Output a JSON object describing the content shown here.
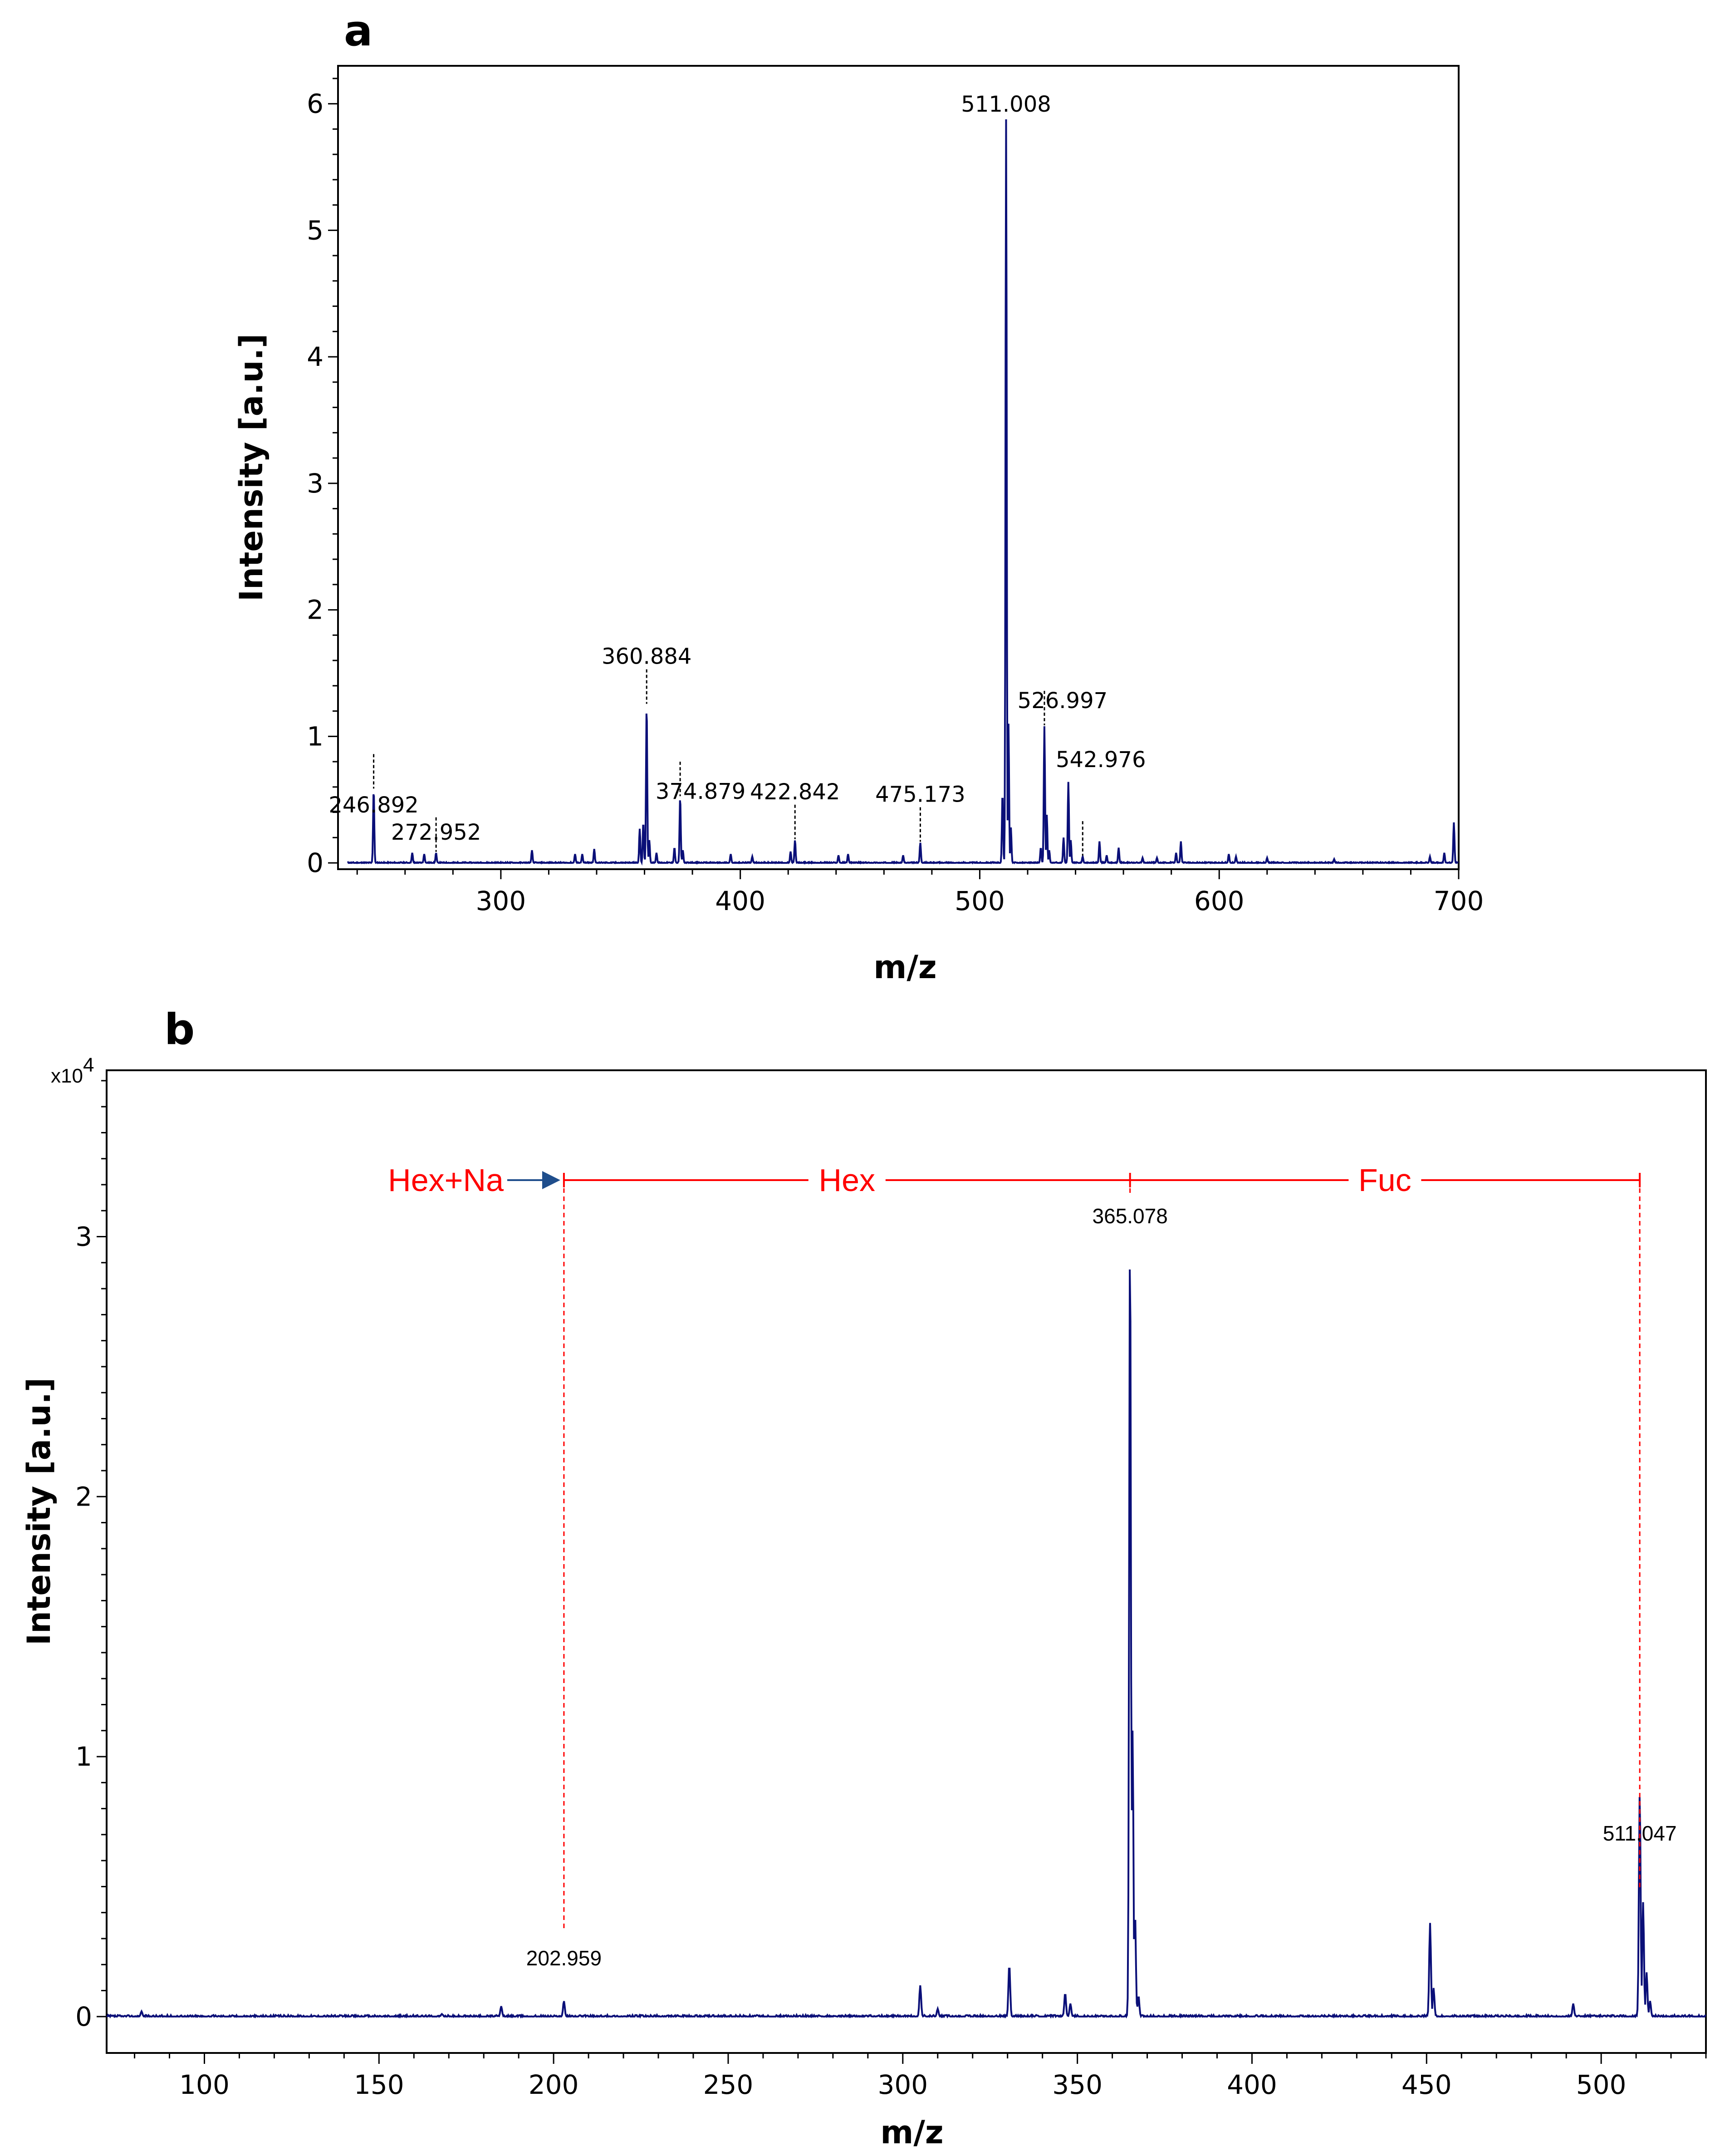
{
  "colors": {
    "trace": "#0a0f78",
    "annotation": "#ff0000",
    "arrow": "#1f4e8c",
    "axis": "#000000"
  },
  "chart_data": [
    {
      "panel": "a",
      "type": "line",
      "xlabel": "m/z",
      "ylabel": "Intensity [a.u.]",
      "xlim": [
        232,
        700
      ],
      "ylim": [
        -0.05,
        6.3
      ],
      "xticks": [
        300,
        400,
        500,
        600,
        700
      ],
      "yticks": [
        0,
        1,
        2,
        3,
        4,
        5,
        6
      ],
      "peaks": [
        {
          "mz": 246.892,
          "intensity": 0.58,
          "label": "246.892"
        },
        {
          "mz": 263,
          "intensity": 0.08
        },
        {
          "mz": 268,
          "intensity": 0.07
        },
        {
          "mz": 272.952,
          "intensity": 0.08,
          "label": "272.952"
        },
        {
          "mz": 313,
          "intensity": 0.1
        },
        {
          "mz": 331,
          "intensity": 0.07
        },
        {
          "mz": 334,
          "intensity": 0.07
        },
        {
          "mz": 339,
          "intensity": 0.11
        },
        {
          "mz": 358,
          "intensity": 0.27
        },
        {
          "mz": 359.5,
          "intensity": 0.32
        },
        {
          "mz": 360.884,
          "intensity": 1.25,
          "label": "360.884"
        },
        {
          "mz": 362,
          "intensity": 0.18
        },
        {
          "mz": 365,
          "intensity": 0.08
        },
        {
          "mz": 372.5,
          "intensity": 0.12
        },
        {
          "mz": 374.879,
          "intensity": 0.52,
          "label": "374.879"
        },
        {
          "mz": 376,
          "intensity": 0.1
        },
        {
          "mz": 396,
          "intensity": 0.07
        },
        {
          "mz": 405,
          "intensity": 0.05
        },
        {
          "mz": 421,
          "intensity": 0.09
        },
        {
          "mz": 422.842,
          "intensity": 0.18,
          "label": "422.842"
        },
        {
          "mz": 441,
          "intensity": 0.06
        },
        {
          "mz": 445,
          "intensity": 0.07
        },
        {
          "mz": 468,
          "intensity": 0.06
        },
        {
          "mz": 475.173,
          "intensity": 0.16,
          "label": "475.173"
        },
        {
          "mz": 509.5,
          "intensity": 0.55
        },
        {
          "mz": 511.008,
          "intensity": 5.88,
          "label": "511.008"
        },
        {
          "mz": 512,
          "intensity": 1.1
        },
        {
          "mz": 513,
          "intensity": 0.28
        },
        {
          "mz": 525.5,
          "intensity": 0.12
        },
        {
          "mz": 526.997,
          "intensity": 1.08,
          "label": "526.997"
        },
        {
          "mz": 528,
          "intensity": 0.38
        },
        {
          "mz": 529,
          "intensity": 0.1
        },
        {
          "mz": 535,
          "intensity": 0.2
        },
        {
          "mz": 537,
          "intensity": 0.64
        },
        {
          "mz": 538,
          "intensity": 0.18
        },
        {
          "mz": 542.976,
          "intensity": 0.05,
          "label": "542.976"
        },
        {
          "mz": 550,
          "intensity": 0.17
        },
        {
          "mz": 553,
          "intensity": 0.06
        },
        {
          "mz": 558,
          "intensity": 0.12
        },
        {
          "mz": 568,
          "intensity": 0.04
        },
        {
          "mz": 574,
          "intensity": 0.04
        },
        {
          "mz": 582,
          "intensity": 0.08
        },
        {
          "mz": 584,
          "intensity": 0.17
        },
        {
          "mz": 604,
          "intensity": 0.07
        },
        {
          "mz": 607,
          "intensity": 0.05
        },
        {
          "mz": 620,
          "intensity": 0.04
        },
        {
          "mz": 648,
          "intensity": 0.03
        },
        {
          "mz": 688,
          "intensity": 0.05
        },
        {
          "mz": 694,
          "intensity": 0.08
        },
        {
          "mz": 698,
          "intensity": 0.32
        }
      ]
    },
    {
      "panel": "b",
      "type": "line",
      "xlabel": "m/z",
      "ylabel": "Intensity [a.u.]",
      "y_multiplier": "x10",
      "y_multiplier_exponent": "4",
      "xlim": [
        72,
        530
      ],
      "ylim": [
        -0.14,
        3.64
      ],
      "xticks": [
        100,
        150,
        200,
        250,
        300,
        350,
        400,
        450,
        500
      ],
      "yticks": [
        0,
        1,
        2,
        3
      ],
      "peaks": [
        {
          "mz": 82,
          "intensity": 0.02
        },
        {
          "mz": 168,
          "intensity": 0.01
        },
        {
          "mz": 185,
          "intensity": 0.04
        },
        {
          "mz": 202.959,
          "intensity": 0.06,
          "label": "202.959"
        },
        {
          "mz": 305,
          "intensity": 0.12
        },
        {
          "mz": 310,
          "intensity": 0.03
        },
        {
          "mz": 330.5,
          "intensity": 0.2
        },
        {
          "mz": 346.5,
          "intensity": 0.09
        },
        {
          "mz": 348,
          "intensity": 0.05
        },
        {
          "mz": 365.078,
          "intensity": 3.02,
          "label": "365.078"
        },
        {
          "mz": 365.8,
          "intensity": 1.1
        },
        {
          "mz": 366.5,
          "intensity": 0.4
        },
        {
          "mz": 367.5,
          "intensity": 0.08
        },
        {
          "mz": 451,
          "intensity": 0.36
        },
        {
          "mz": 452,
          "intensity": 0.11
        },
        {
          "mz": 492,
          "intensity": 0.05
        },
        {
          "mz": 511.047,
          "intensity": 0.86,
          "label": "511.047"
        },
        {
          "mz": 512,
          "intensity": 0.44
        },
        {
          "mz": 513,
          "intensity": 0.17
        },
        {
          "mz": 514,
          "intensity": 0.06
        }
      ],
      "annotations": {
        "hex_na": "Hex+Na",
        "hex": "Hex",
        "fuc": "Fuc",
        "markers_mz": [
          202.959,
          365.078,
          511.047
        ]
      }
    }
  ]
}
